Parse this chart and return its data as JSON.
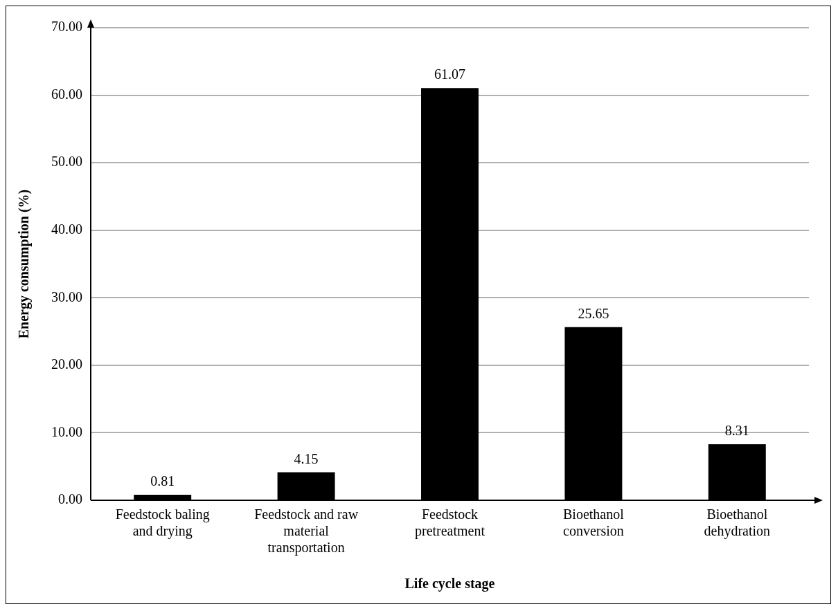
{
  "chart_data": {
    "type": "bar",
    "xlabel": "Life cycle stage",
    "ylabel": "Energy consumption (%)",
    "categories": [
      "Feedstock baling and drying",
      "Feedstock and raw material transportation",
      "Feedstock pretreatment",
      "Bioethanol conversion",
      "Bioethanol dehydration"
    ],
    "values": [
      0.81,
      4.15,
      61.07,
      25.65,
      8.31
    ],
    "color": "#000000",
    "ylim": [
      0,
      70
    ],
    "yticks": [
      {
        "value": 0,
        "label": "0.00"
      },
      {
        "value": 10,
        "label": "10.00"
      },
      {
        "value": 20,
        "label": "20.00"
      },
      {
        "value": 30,
        "label": "30.00"
      },
      {
        "value": 40,
        "label": "40.00"
      },
      {
        "value": 50,
        "label": "50.00"
      },
      {
        "value": 60,
        "label": "60.00"
      },
      {
        "value": 70,
        "label": "70.00"
      }
    ],
    "grid": "y",
    "data_labels": true,
    "legend": false
  }
}
